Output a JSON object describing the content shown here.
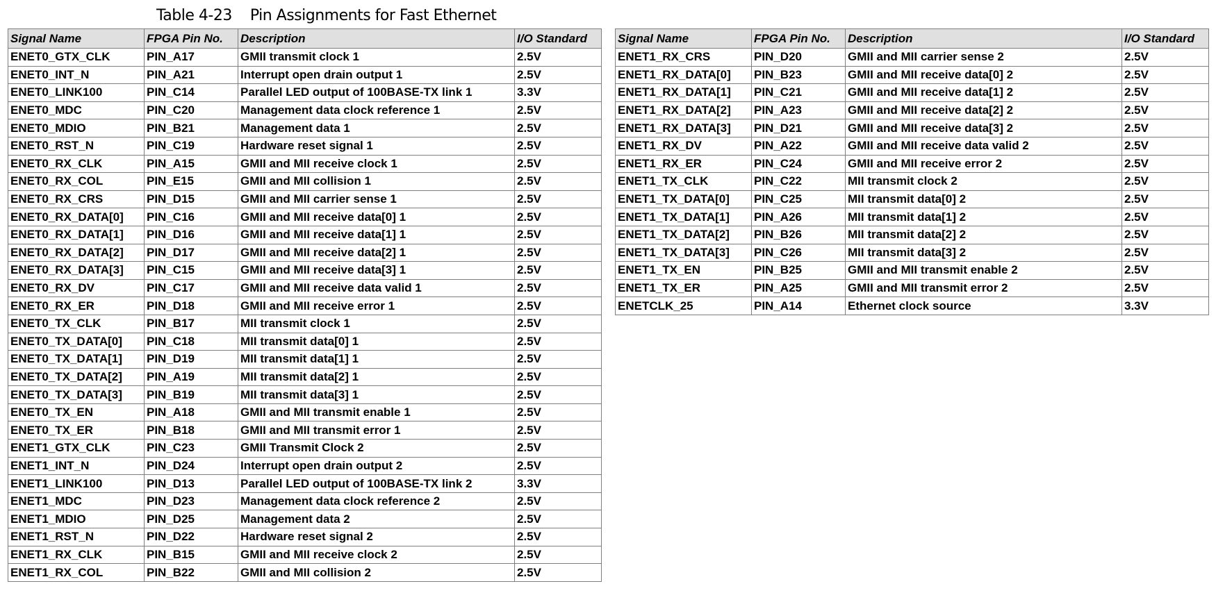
{
  "caption": {
    "number": "Table 4-23",
    "title": "Pin Assignments for Fast Ethernet"
  },
  "headers": [
    "Signal Name",
    "FPGA Pin No.",
    "Description",
    "I/O Standard"
  ],
  "left_rows": [
    [
      "ENET0_GTX_CLK",
      "PIN_A17",
      "GMII transmit clock 1",
      "2.5V"
    ],
    [
      "ENET0_INT_N",
      "PIN_A21",
      "Interrupt open drain output 1",
      "2.5V"
    ],
    [
      "ENET0_LINK100",
      "PIN_C14",
      "Parallel LED output of 100BASE-TX link 1",
      "3.3V"
    ],
    [
      "ENET0_MDC",
      "PIN_C20",
      "Management data clock reference 1",
      "2.5V"
    ],
    [
      "ENET0_MDIO",
      "PIN_B21",
      "Management data 1",
      "2.5V"
    ],
    [
      "ENET0_RST_N",
      "PIN_C19",
      "Hardware reset signal 1",
      "2.5V"
    ],
    [
      "ENET0_RX_CLK",
      "PIN_A15",
      "GMII and MII receive clock 1",
      "2.5V"
    ],
    [
      "ENET0_RX_COL",
      "PIN_E15",
      "GMII and MII collision 1",
      "2.5V"
    ],
    [
      "ENET0_RX_CRS",
      "PIN_D15",
      "GMII and MII carrier sense 1",
      "2.5V"
    ],
    [
      "ENET0_RX_DATA[0]",
      "PIN_C16",
      "GMII and MII receive data[0] 1",
      "2.5V"
    ],
    [
      "ENET0_RX_DATA[1]",
      "PIN_D16",
      "GMII and MII receive data[1] 1",
      "2.5V"
    ],
    [
      "ENET0_RX_DATA[2]",
      "PIN_D17",
      "GMII and MII receive data[2] 1",
      "2.5V"
    ],
    [
      "ENET0_RX_DATA[3]",
      "PIN_C15",
      "GMII and MII receive data[3] 1",
      "2.5V"
    ],
    [
      "ENET0_RX_DV",
      "PIN_C17",
      "GMII and MII receive data valid 1",
      "2.5V"
    ],
    [
      "ENET0_RX_ER",
      "PIN_D18",
      "GMII and MII receive error 1",
      "2.5V"
    ],
    [
      "ENET0_TX_CLK",
      "PIN_B17",
      "MII transmit clock 1",
      "2.5V"
    ],
    [
      "ENET0_TX_DATA[0]",
      "PIN_C18",
      "MII transmit data[0] 1",
      "2.5V"
    ],
    [
      "ENET0_TX_DATA[1]",
      "PIN_D19",
      "MII transmit data[1] 1",
      "2.5V"
    ],
    [
      "ENET0_TX_DATA[2]",
      "PIN_A19",
      "MII transmit data[2] 1",
      "2.5V"
    ],
    [
      "ENET0_TX_DATA[3]",
      "PIN_B19",
      "MII transmit data[3] 1",
      "2.5V"
    ],
    [
      "ENET0_TX_EN",
      "PIN_A18",
      "GMII and MII transmit enable 1",
      "2.5V"
    ],
    [
      "ENET0_TX_ER",
      "PIN_B18",
      "GMII and MII transmit error 1",
      "2.5V"
    ],
    [
      "ENET1_GTX_CLK",
      "PIN_C23",
      "GMII Transmit Clock 2",
      "2.5V"
    ],
    [
      "ENET1_INT_N",
      "PIN_D24",
      "Interrupt open drain output 2",
      "2.5V"
    ],
    [
      "ENET1_LINK100",
      "PIN_D13",
      "Parallel LED output of 100BASE-TX link 2",
      "3.3V"
    ],
    [
      "ENET1_MDC",
      "PIN_D23",
      "Management data clock reference 2",
      "2.5V"
    ],
    [
      "ENET1_MDIO",
      "PIN_D25",
      "Management data 2",
      "2.5V"
    ],
    [
      "ENET1_RST_N",
      "PIN_D22",
      "Hardware reset signal 2",
      "2.5V"
    ],
    [
      "ENET1_RX_CLK",
      "PIN_B15",
      "GMII and MII receive clock 2",
      "2.5V"
    ],
    [
      "ENET1_RX_COL",
      "PIN_B22",
      "GMII and MII collision 2",
      "2.5V"
    ]
  ],
  "right_rows": [
    [
      "ENET1_RX_CRS",
      "PIN_D20",
      "GMII and MII carrier sense 2",
      "2.5V"
    ],
    [
      "ENET1_RX_DATA[0]",
      "PIN_B23",
      "GMII and MII receive data[0] 2",
      "2.5V"
    ],
    [
      "ENET1_RX_DATA[1]",
      "PIN_C21",
      "GMII and MII receive data[1] 2",
      "2.5V"
    ],
    [
      "ENET1_RX_DATA[2]",
      "PIN_A23",
      "GMII and MII receive data[2] 2",
      "2.5V"
    ],
    [
      "ENET1_RX_DATA[3]",
      "PIN_D21",
      "GMII and MII receive data[3] 2",
      "2.5V"
    ],
    [
      "ENET1_RX_DV",
      "PIN_A22",
      "GMII and MII receive data valid 2",
      "2.5V"
    ],
    [
      "ENET1_RX_ER",
      "PIN_C24",
      "GMII and MII receive error 2",
      "2.5V"
    ],
    [
      "ENET1_TX_CLK",
      "PIN_C22",
      "MII transmit clock 2",
      "2.5V"
    ],
    [
      "ENET1_TX_DATA[0]",
      "PIN_C25",
      "MII transmit data[0] 2",
      "2.5V"
    ],
    [
      "ENET1_TX_DATA[1]",
      "PIN_A26",
      "MII transmit data[1] 2",
      "2.5V"
    ],
    [
      "ENET1_TX_DATA[2]",
      "PIN_B26",
      "MII transmit data[2] 2",
      "2.5V"
    ],
    [
      "ENET1_TX_DATA[3]",
      "PIN_C26",
      "MII transmit data[3] 2",
      "2.5V"
    ],
    [
      "ENET1_TX_EN",
      "PIN_B25",
      "GMII and MII transmit enable 2",
      "2.5V"
    ],
    [
      "ENET1_TX_ER",
      "PIN_A25",
      "GMII and MII transmit error 2",
      "2.5V"
    ],
    [
      "ENETCLK_25",
      "PIN_A14",
      "Ethernet clock source",
      "3.3V"
    ]
  ],
  "colors": {
    "header_bg": "#e0e0e0",
    "grid": "#7f7f7f"
  }
}
